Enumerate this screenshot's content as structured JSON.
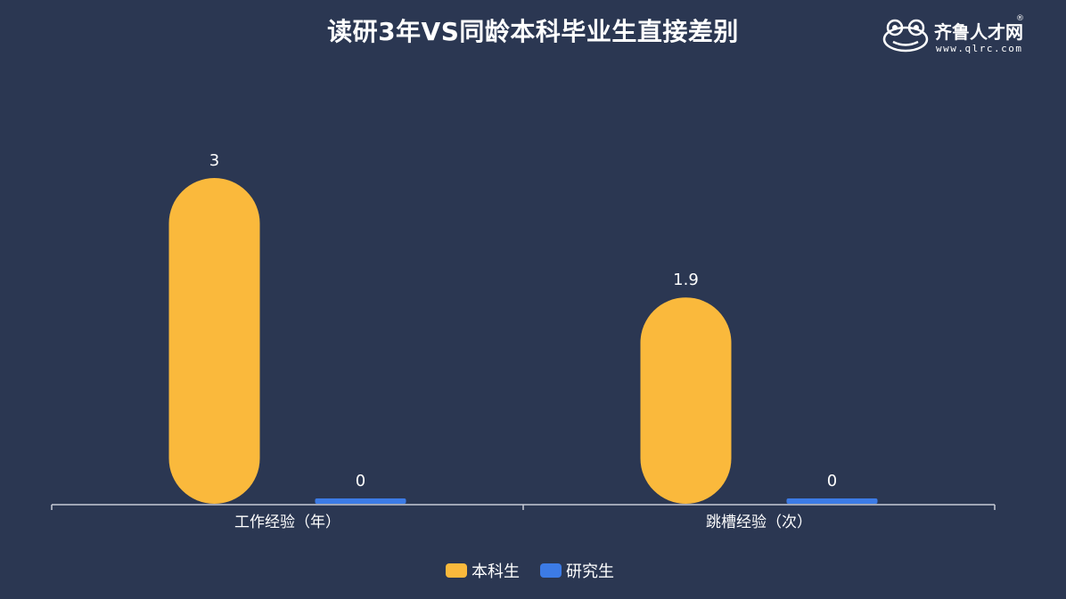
{
  "title": "读研3年VS同龄本科毕业生直接差别",
  "logo": {
    "name": "齐鲁人才网",
    "url": "www.qlrc.com",
    "reg_mark": "®",
    "icon": "frog-icon"
  },
  "chart_data": {
    "type": "bar",
    "title": "读研3年VS同龄本科毕业生直接差别",
    "categories": [
      "工作经验（年）",
      "跳槽经验（次）"
    ],
    "series": [
      {
        "name": "本科生",
        "values": [
          3,
          1.9
        ],
        "color": "#fab93c"
      },
      {
        "name": "研究生",
        "values": [
          0,
          0
        ],
        "color": "#3c7be6"
      }
    ],
    "data_labels": [
      [
        "3",
        "1.9"
      ],
      [
        "0",
        "0"
      ]
    ],
    "ylim": [
      0,
      3
    ],
    "grid": false,
    "legend": "bottom-center",
    "xlabel": "",
    "ylabel": ""
  }
}
